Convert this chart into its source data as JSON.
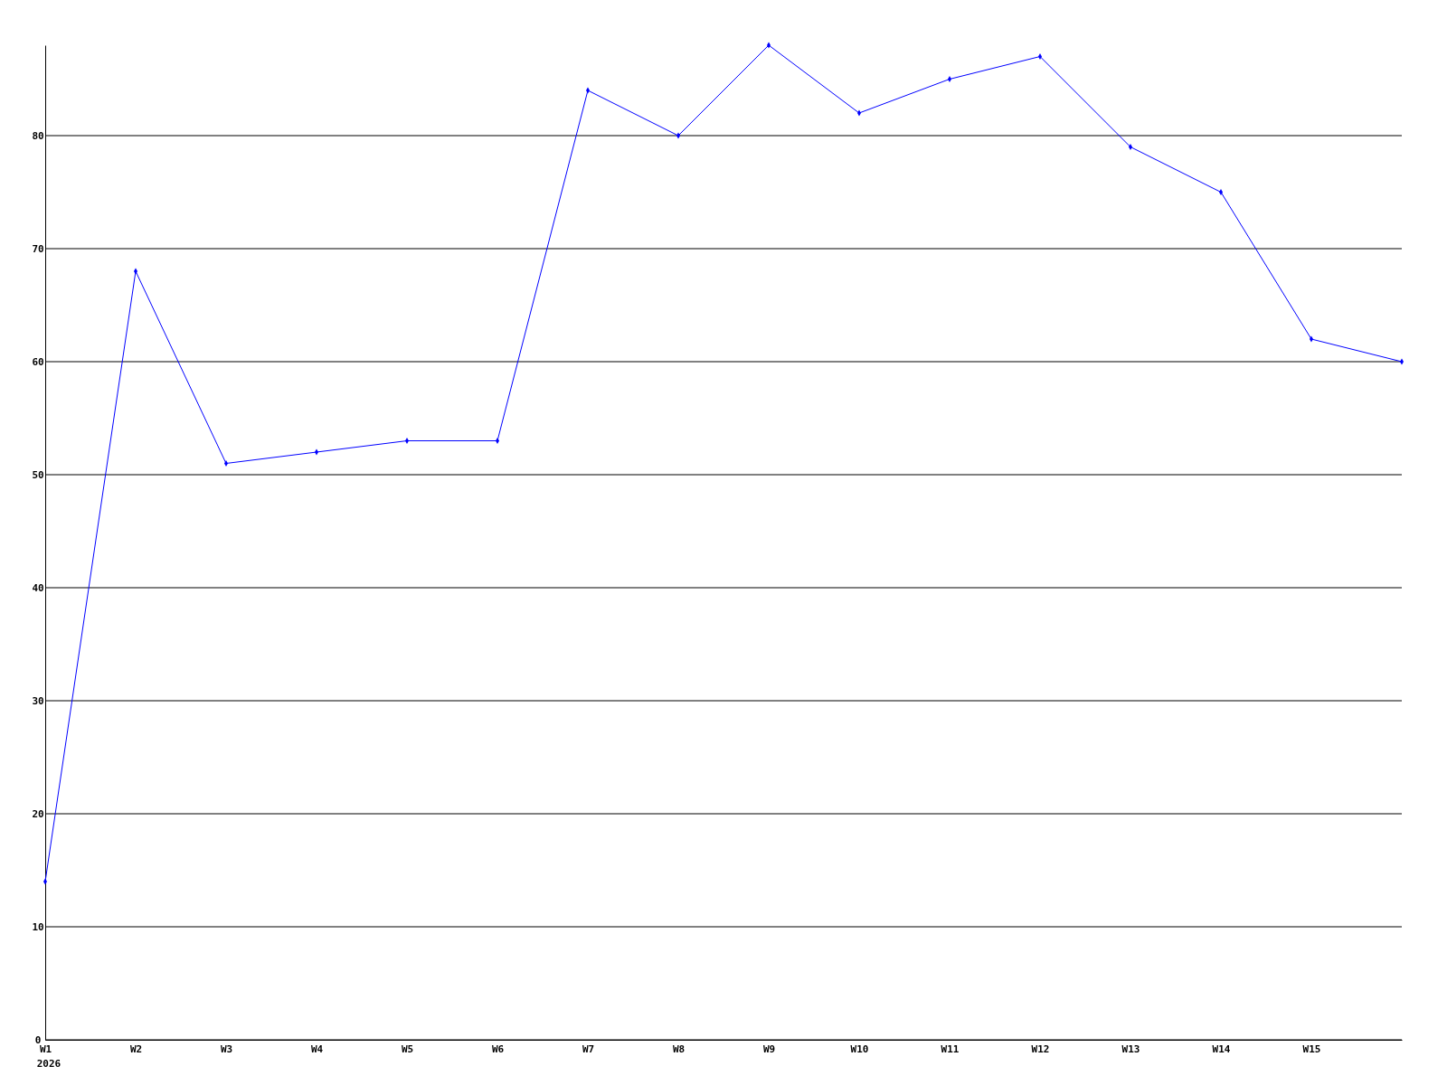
{
  "chart_data": {
    "type": "line",
    "categories": [
      "W1",
      "W2",
      "W3",
      "W4",
      "W5",
      "W6",
      "W7",
      "W8",
      "W9",
      "W10",
      "W11",
      "W12",
      "W13",
      "W14",
      "W15",
      null
    ],
    "series": [
      {
        "color": "#0000ff",
        "values": [
          14,
          68,
          51,
          52,
          53,
          53,
          84,
          80,
          88,
          82,
          85,
          87,
          79,
          75,
          62,
          60
        ]
      }
    ],
    "ylim": [
      0,
      88
    ],
    "yticks": [
      0,
      10,
      20,
      30,
      40,
      50,
      60,
      70,
      80
    ],
    "grid": "y",
    "marker": "diamond",
    "line_style": "solid",
    "annotations": [
      "2026"
    ]
  }
}
